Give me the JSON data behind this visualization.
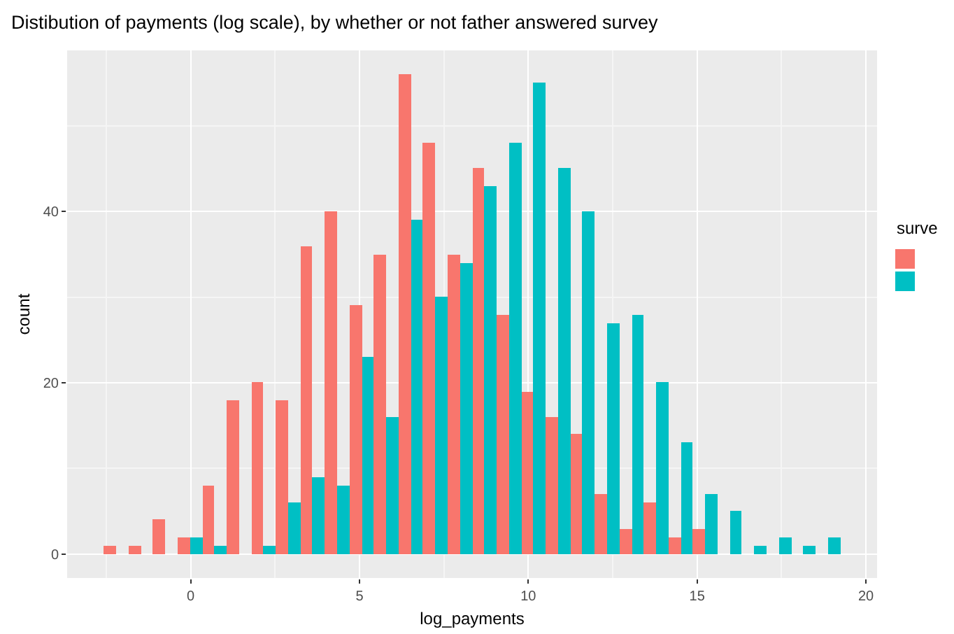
{
  "chart_data": {
    "type": "histogram",
    "title": "Distibution of payments (log scale), by whether or not father answered survey",
    "xlabel": "log_payments",
    "ylabel": "count",
    "legend_title": "surve",
    "bins": [
      -2.57,
      -1.84,
      -1.12,
      -0.39,
      0.34,
      1.07,
      1.79,
      2.52,
      3.25,
      3.97,
      4.7,
      5.43,
      6.15,
      6.88,
      7.61,
      8.34,
      9.06,
      9.79,
      10.52,
      11.24,
      11.97,
      12.7,
      13.42,
      14.15,
      14.88,
      15.61,
      16.33,
      17.06,
      17.79,
      18.51,
      19.24
    ],
    "series": [
      {
        "color": "#f8766d",
        "values": [
          1,
          1,
          4,
          2,
          8,
          18,
          20,
          18,
          36,
          40,
          29,
          35,
          56,
          48,
          35,
          45,
          28,
          19,
          16,
          14,
          7,
          3,
          6,
          2,
          3,
          0,
          0,
          0,
          0,
          0
        ]
      },
      {
        "color": "#00bfc4",
        "values": [
          0,
          0,
          0,
          2,
          1,
          0,
          1,
          6,
          9,
          8,
          23,
          16,
          39,
          30,
          34,
          43,
          48,
          55,
          45,
          40,
          27,
          28,
          20,
          13,
          7,
          5,
          1,
          2,
          1,
          2
        ]
      }
    ],
    "xlim": [
      -3.66,
      20.33
    ],
    "xticks": [
      0,
      5,
      10,
      15,
      20
    ],
    "ylim": [
      -2.8,
      58.8
    ],
    "yticks": [
      0,
      20,
      40
    ],
    "grid": true
  }
}
